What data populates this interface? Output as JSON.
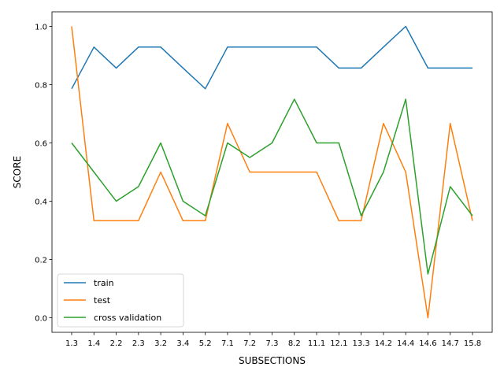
{
  "chart_data": {
    "type": "line",
    "title": "",
    "xlabel": "SUBSECTIONS",
    "ylabel": "SCORE",
    "categories": [
      "1.3",
      "1.4",
      "2.2",
      "2.3",
      "3.2",
      "3.4",
      "5.2",
      "7.1",
      "7.2",
      "7.3",
      "8.2",
      "11.1",
      "12.1",
      "13.3",
      "14.2",
      "14.4",
      "14.6",
      "14.7",
      "15.8"
    ],
    "ylim": [
      -0.05,
      1.05
    ],
    "yticks": [
      "0.0",
      "0.2",
      "0.4",
      "0.6",
      "0.8",
      "1.0"
    ],
    "ytick_values": [
      0.0,
      0.2,
      0.4,
      0.6,
      0.8,
      1.0
    ],
    "grid": false,
    "legend_position": "lower-left",
    "series": [
      {
        "name": "train",
        "color": "#1f77b4",
        "values": [
          0.786,
          0.929,
          0.857,
          0.929,
          0.929,
          0.857,
          0.786,
          0.929,
          0.929,
          0.929,
          0.929,
          0.929,
          0.857,
          0.857,
          0.929,
          1.0,
          0.857,
          0.857,
          0.857
        ]
      },
      {
        "name": "test",
        "color": "#ff7f0e",
        "values": [
          1.0,
          0.333,
          0.333,
          0.333,
          0.5,
          0.333,
          0.333,
          0.667,
          0.5,
          0.5,
          0.5,
          0.5,
          0.333,
          0.333,
          0.667,
          0.5,
          0.0,
          0.667,
          0.333
        ]
      },
      {
        "name": "cross validation",
        "color": "#2ca02c",
        "values": [
          0.6,
          0.5,
          0.4,
          0.45,
          0.6,
          0.4,
          0.35,
          0.6,
          0.55,
          0.6,
          0.75,
          0.6,
          0.6,
          0.35,
          0.5,
          0.75,
          0.15,
          0.45,
          0.35
        ]
      }
    ]
  }
}
